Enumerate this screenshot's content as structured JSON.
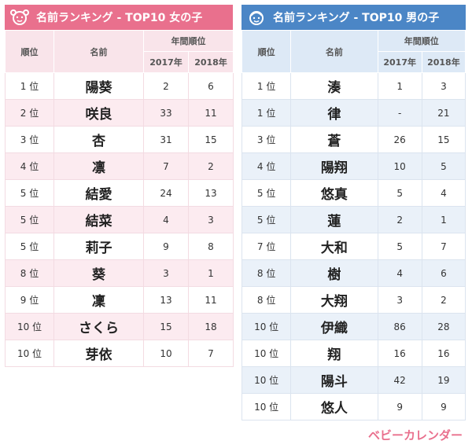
{
  "girls": {
    "title": "名前ランキング - TOP10 女の子",
    "headers": {
      "rank": "順位",
      "name": "名前",
      "annual": "年間順位",
      "y2017": "2017年",
      "y2018": "2018年"
    },
    "rows": [
      {
        "rank": "1 位",
        "name": "陽葵",
        "y2017": "2",
        "y2018": "6"
      },
      {
        "rank": "2 位",
        "name": "咲良",
        "y2017": "33",
        "y2018": "11"
      },
      {
        "rank": "3 位",
        "name": "杏",
        "y2017": "31",
        "y2018": "15"
      },
      {
        "rank": "4 位",
        "name": "凛",
        "y2017": "7",
        "y2018": "2"
      },
      {
        "rank": "5 位",
        "name": "結愛",
        "y2017": "24",
        "y2018": "13"
      },
      {
        "rank": "5 位",
        "name": "結菜",
        "y2017": "4",
        "y2018": "3"
      },
      {
        "rank": "5 位",
        "name": "莉子",
        "y2017": "9",
        "y2018": "8"
      },
      {
        "rank": "8 位",
        "name": "葵",
        "y2017": "3",
        "y2018": "1"
      },
      {
        "rank": "9 位",
        "name": "凜",
        "y2017": "13",
        "y2018": "11"
      },
      {
        "rank": "10 位",
        "name": "さくら",
        "y2017": "15",
        "y2018": "18"
      },
      {
        "rank": "10 位",
        "name": "芽依",
        "y2017": "10",
        "y2018": "7"
      }
    ]
  },
  "boys": {
    "title": "名前ランキング - TOP10 男の子",
    "headers": {
      "rank": "順位",
      "name": "名前",
      "annual": "年間順位",
      "y2017": "2017年",
      "y2018": "2018年"
    },
    "rows": [
      {
        "rank": "1 位",
        "name": "湊",
        "y2017": "1",
        "y2018": "3"
      },
      {
        "rank": "1 位",
        "name": "律",
        "y2017": "-",
        "y2018": "21"
      },
      {
        "rank": "3 位",
        "name": "蒼",
        "y2017": "26",
        "y2018": "15"
      },
      {
        "rank": "4 位",
        "name": "陽翔",
        "y2017": "10",
        "y2018": "5"
      },
      {
        "rank": "5 位",
        "name": "悠真",
        "y2017": "5",
        "y2018": "4"
      },
      {
        "rank": "5 位",
        "name": "蓮",
        "y2017": "2",
        "y2018": "1"
      },
      {
        "rank": "7 位",
        "name": "大和",
        "y2017": "5",
        "y2018": "7"
      },
      {
        "rank": "8 位",
        "name": "樹",
        "y2017": "4",
        "y2018": "6"
      },
      {
        "rank": "8 位",
        "name": "大翔",
        "y2017": "3",
        "y2018": "2"
      },
      {
        "rank": "10 位",
        "name": "伊織",
        "y2017": "86",
        "y2018": "28"
      },
      {
        "rank": "10 位",
        "name": "翔",
        "y2017": "16",
        "y2018": "16"
      },
      {
        "rank": "10 位",
        "name": "陽斗",
        "y2017": "42",
        "y2018": "19"
      },
      {
        "rank": "10 位",
        "name": "悠人",
        "y2017": "9",
        "y2018": "9"
      }
    ]
  },
  "brand": "ベビーカレンダー",
  "colors": {
    "girl_accent": "#e9708d",
    "boy_accent": "#4b86c6"
  },
  "icons": {
    "girl": "girl-face-icon",
    "boy": "boy-face-icon"
  }
}
